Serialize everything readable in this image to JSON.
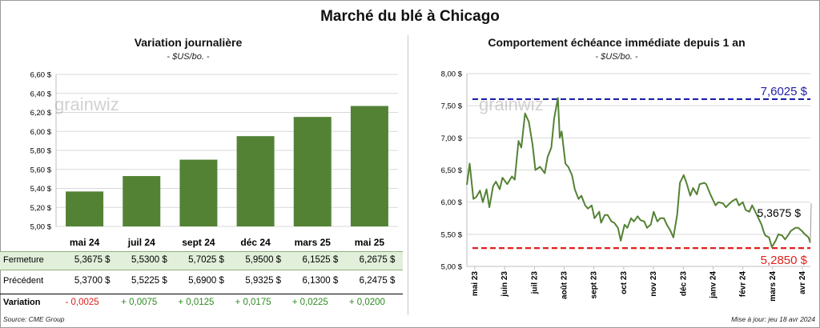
{
  "title": "Marché du blé à Chicago",
  "left_chart": {
    "title": "Variation journalière",
    "unit": "- $US/bo. -",
    "watermark": "grainwiz"
  },
  "right_chart": {
    "title": "Comportement échéance immédiate depuis 1 an",
    "unit": "- $US/bo. -",
    "watermark": "grainwiz",
    "high_label": "7,6025 $",
    "low_label": "5,2850 $",
    "last_label": "5,3675 $"
  },
  "table": {
    "rows": [
      {
        "label": "Fermeture",
        "values": [
          "5,3675  $",
          "5,5300  $",
          "5,7025  $",
          "5,9500  $",
          "6,1525  $",
          "6,2675  $"
        ]
      },
      {
        "label": "Précédent",
        "values": [
          "5,3700  $",
          "5,5225  $",
          "5,6900  $",
          "5,9325  $",
          "6,1300  $",
          "6,2475  $"
        ]
      },
      {
        "label": "Variation",
        "values": [
          "- 0,0025",
          "+ 0,0075",
          "+ 0,0125",
          "+ 0,0175",
          "+ 0,0225",
          "+ 0,0200"
        ]
      }
    ]
  },
  "footer": {
    "source": "Source: CME Group",
    "updated": "Mise à jour: jeu 18 avr 2024"
  },
  "colors": {
    "bar": "#548235",
    "line": "#548235",
    "high_line": "#1f1fa8",
    "low_line": "#e0201b",
    "negative": "#e0201b",
    "positive": "#2e8b22",
    "table_band": "#e2efda"
  },
  "chart_data": [
    {
      "type": "bar",
      "categories": [
        "mai 24",
        "juil 24",
        "sept 24",
        "déc 24",
        "mars 25",
        "mai 25"
      ],
      "values": [
        5.3675,
        5.53,
        5.7025,
        5.95,
        6.1525,
        6.2675
      ],
      "yticks": [
        "5,00 $",
        "5,20 $",
        "5,40 $",
        "5,60 $",
        "5,80 $",
        "6,00 $",
        "6,20 $",
        "6,40 $",
        "6,60 $"
      ],
      "ylim": [
        5.0,
        6.6
      ]
    },
    {
      "type": "line",
      "xticks": [
        "mai 23",
        "juin 23",
        "juil 23",
        "août 23",
        "sept 23",
        "oct 23",
        "nov 23",
        "déc 23",
        "janv 24",
        "févr 24",
        "mars 24",
        "avr 24"
      ],
      "yticks": [
        "5,00 $",
        "5,50 $",
        "6,00 $",
        "6,50 $",
        "7,00 $",
        "7,50 $",
        "8,00 $"
      ],
      "ylim": [
        5.0,
        8.0
      ],
      "x_range": [
        "2023-04-18",
        "2024-04-18"
      ],
      "series": [
        {
          "points": [
            [
              "2023-04-18",
              6.27
            ],
            [
              "2023-04-20",
              6.48
            ],
            [
              "2023-04-21",
              6.6
            ],
            [
              "2023-04-25",
              6.05
            ],
            [
              "2023-04-28",
              6.08
            ],
            [
              "2023-05-02",
              6.18
            ],
            [
              "2023-05-05",
              6.0
            ],
            [
              "2023-05-09",
              6.2
            ],
            [
              "2023-05-12",
              5.92
            ],
            [
              "2023-05-16",
              6.25
            ],
            [
              "2023-05-19",
              6.32
            ],
            [
              "2023-05-23",
              6.2
            ],
            [
              "2023-05-26",
              6.38
            ],
            [
              "2023-05-31",
              6.28
            ],
            [
              "2023-06-05",
              6.4
            ],
            [
              "2023-06-08",
              6.35
            ],
            [
              "2023-06-12",
              6.95
            ],
            [
              "2023-06-15",
              6.85
            ],
            [
              "2023-06-19",
              7.38
            ],
            [
              "2023-06-23",
              7.25
            ],
            [
              "2023-06-27",
              6.9
            ],
            [
              "2023-06-30",
              6.5
            ],
            [
              "2023-07-05",
              6.55
            ],
            [
              "2023-07-10",
              6.45
            ],
            [
              "2023-07-13",
              6.7
            ],
            [
              "2023-07-17",
              6.85
            ],
            [
              "2023-07-20",
              7.3
            ],
            [
              "2023-07-24",
              7.62
            ],
            [
              "2023-07-26",
              7.0
            ],
            [
              "2023-07-28",
              7.1
            ],
            [
              "2023-08-01",
              6.6
            ],
            [
              "2023-08-04",
              6.55
            ],
            [
              "2023-08-08",
              6.42
            ],
            [
              "2023-08-11",
              6.2
            ],
            [
              "2023-08-15",
              6.05
            ],
            [
              "2023-08-18",
              6.1
            ],
            [
              "2023-08-22",
              5.95
            ],
            [
              "2023-08-25",
              5.9
            ],
            [
              "2023-08-29",
              5.95
            ],
            [
              "2023-09-01",
              5.75
            ],
            [
              "2023-09-06",
              5.85
            ],
            [
              "2023-09-08",
              5.68
            ],
            [
              "2023-09-12",
              5.8
            ],
            [
              "2023-09-15",
              5.8
            ],
            [
              "2023-09-19",
              5.7
            ],
            [
              "2023-09-22",
              5.68
            ],
            [
              "2023-09-26",
              5.6
            ],
            [
              "2023-09-29",
              5.4
            ],
            [
              "2023-10-03",
              5.65
            ],
            [
              "2023-10-06",
              5.6
            ],
            [
              "2023-10-10",
              5.75
            ],
            [
              "2023-10-13",
              5.7
            ],
            [
              "2023-10-17",
              5.78
            ],
            [
              "2023-10-20",
              5.72
            ],
            [
              "2023-10-24",
              5.7
            ],
            [
              "2023-10-27",
              5.6
            ],
            [
              "2023-10-31",
              5.65
            ],
            [
              "2023-11-03",
              5.85
            ],
            [
              "2023-11-07",
              5.7
            ],
            [
              "2023-11-10",
              5.75
            ],
            [
              "2023-11-14",
              5.75
            ],
            [
              "2023-11-17",
              5.65
            ],
            [
              "2023-11-21",
              5.55
            ],
            [
              "2023-11-24",
              5.45
            ],
            [
              "2023-11-28",
              5.8
            ],
            [
              "2023-12-01",
              6.3
            ],
            [
              "2023-12-05",
              6.42
            ],
            [
              "2023-12-08",
              6.3
            ],
            [
              "2023-12-12",
              6.1
            ],
            [
              "2023-12-15",
              6.22
            ],
            [
              "2023-12-19",
              6.12
            ],
            [
              "2023-12-22",
              6.28
            ],
            [
              "2023-12-27",
              6.3
            ],
            [
              "2023-12-29",
              6.28
            ],
            [
              "2024-01-03",
              6.1
            ],
            [
              "2024-01-08",
              5.95
            ],
            [
              "2024-01-11",
              6.0
            ],
            [
              "2024-01-16",
              5.98
            ],
            [
              "2024-01-19",
              5.92
            ],
            [
              "2024-01-23",
              5.98
            ],
            [
              "2024-01-26",
              6.02
            ],
            [
              "2024-01-30",
              6.05
            ],
            [
              "2024-02-02",
              5.95
            ],
            [
              "2024-02-06",
              6.0
            ],
            [
              "2024-02-09",
              5.88
            ],
            [
              "2024-02-13",
              5.85
            ],
            [
              "2024-02-16",
              5.95
            ],
            [
              "2024-02-21",
              5.8
            ],
            [
              "2024-02-26",
              5.65
            ],
            [
              "2024-02-28",
              5.55
            ],
            [
              "2024-03-01",
              5.48
            ],
            [
              "2024-03-05",
              5.45
            ],
            [
              "2024-03-08",
              5.3
            ],
            [
              "2024-03-12",
              5.4
            ],
            [
              "2024-03-15",
              5.5
            ],
            [
              "2024-03-19",
              5.48
            ],
            [
              "2024-03-22",
              5.42
            ],
            [
              "2024-03-26",
              5.5
            ],
            [
              "2024-03-28",
              5.55
            ],
            [
              "2024-04-02",
              5.6
            ],
            [
              "2024-04-05",
              5.6
            ],
            [
              "2024-04-09",
              5.55
            ],
            [
              "2024-04-12",
              5.5
            ],
            [
              "2024-04-16",
              5.45
            ],
            [
              "2024-04-18",
              5.3675
            ]
          ]
        }
      ],
      "reference_lines": [
        7.6025,
        5.285
      ]
    }
  ]
}
